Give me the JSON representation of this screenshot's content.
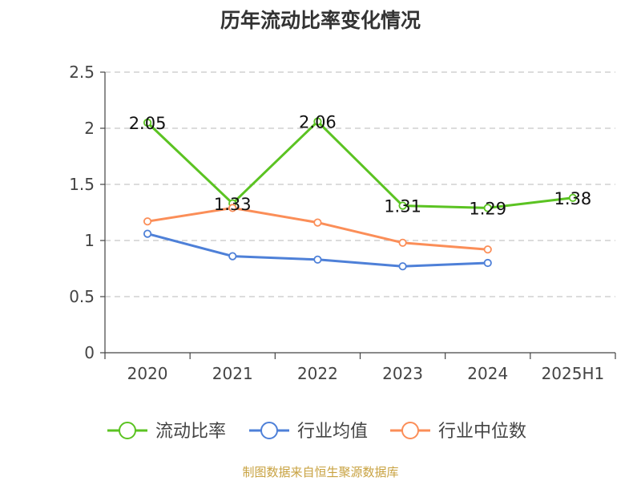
{
  "chart_data": {
    "type": "line",
    "title": "历年流动比率变化情况",
    "categories": [
      "2020",
      "2021",
      "2022",
      "2023",
      "2024",
      "2025H1"
    ],
    "ylim": [
      0,
      2.5
    ],
    "yticks": [
      "0",
      "0.5",
      "1",
      "1.5",
      "2",
      "2.5"
    ],
    "grid": true,
    "legend_position": "bottom",
    "series": [
      {
        "name": "流动比率",
        "color": "#5bc322",
        "values": [
          2.05,
          1.33,
          2.06,
          1.31,
          1.29,
          1.38
        ],
        "labels": [
          "2.05",
          "1.33",
          "2.06",
          "1.31",
          "1.29",
          "1.38"
        ]
      },
      {
        "name": "行业均值",
        "color": "#4e80d8",
        "values": [
          1.06,
          0.86,
          0.83,
          0.77,
          0.8,
          null
        ]
      },
      {
        "name": "行业中位数",
        "color": "#fb8e58",
        "values": [
          1.17,
          1.29,
          1.16,
          0.98,
          0.92,
          null
        ]
      }
    ]
  },
  "footer": {
    "source": "制图数据来自恒生聚源数据库"
  }
}
